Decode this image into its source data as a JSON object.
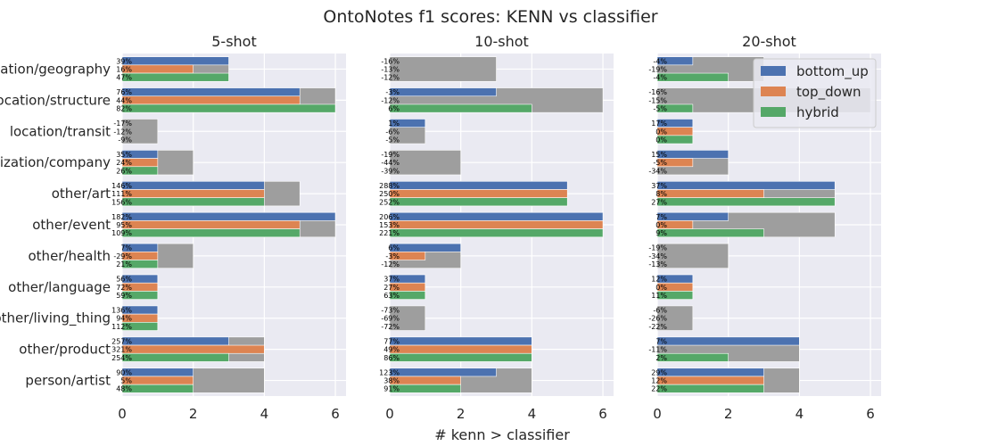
{
  "chart_data": {
    "type": "bar",
    "orientation": "horizontal",
    "title": "OntoNotes f1 scores: KENN vs classifier",
    "xlabel": "# kenn > classifier",
    "xlim": [
      0,
      6.3
    ],
    "xticks": [
      "0",
      "2",
      "4",
      "6"
    ],
    "grid": true,
    "legend_placement": "upper-right of third panel",
    "categories": [
      "/location/geography",
      "/location/structure",
      "location/transit",
      "/organization/company",
      "other/art",
      "other/event",
      "other/health",
      "other/language",
      "/other/living_thing",
      "other/product",
      "person/artist"
    ],
    "colors": {
      "bottom_up": "#4c72b0",
      "top_down": "#dd8452",
      "hybrid": "#55a868",
      "total": "#9e9e9e",
      "panel_bg": "#eaeaf2",
      "grid": "#ffffff"
    },
    "series_names": [
      "bottom_up",
      "top_down",
      "hybrid"
    ],
    "panels": [
      {
        "title": "5-shot",
        "total": [
          3,
          6,
          1,
          2,
          5,
          6,
          2,
          1,
          1,
          4,
          4
        ],
        "series": [
          {
            "name": "bottom_up",
            "values": [
              3,
              5,
              0,
              1,
              4,
              6,
              1,
              1,
              1,
              3,
              2
            ],
            "labels": [
              "39%",
              "76%",
              "-17%",
              "35%",
              "146%",
              "182%",
              "7%",
              "56%",
              "136%",
              "257%",
              "90%"
            ]
          },
          {
            "name": "top_down",
            "values": [
              2,
              5,
              0,
              1,
              4,
              5,
              1,
              1,
              1,
              4,
              2
            ],
            "labels": [
              "16%",
              "44%",
              "-12%",
              "24%",
              "111%",
              "95%",
              "-29%",
              "72%",
              "94%",
              "321%",
              "5%"
            ]
          },
          {
            "name": "hybrid",
            "values": [
              3,
              6,
              0,
              1,
              4,
              5,
              1,
              1,
              1,
              3,
              2
            ],
            "labels": [
              "47%",
              "82%",
              "-9%",
              "26%",
              "156%",
              "109%",
              "21%",
              "59%",
              "112%",
              "254%",
              "48%"
            ]
          }
        ]
      },
      {
        "title": "10-shot",
        "total": [
          3,
          6,
          1,
          2,
          5,
          6,
          2,
          1,
          1,
          4,
          4
        ],
        "series": [
          {
            "name": "bottom_up",
            "values": [
              0,
              3,
              1,
              0,
              5,
              6,
              2,
              1,
              0,
              4,
              3
            ],
            "labels": [
              "-16%",
              "-3%",
              "1%",
              "-19%",
              "288%",
              "206%",
              "6%",
              "37%",
              "-73%",
              "77%",
              "123%"
            ]
          },
          {
            "name": "top_down",
            "values": [
              0,
              0,
              0,
              0,
              5,
              6,
              1,
              1,
              0,
              4,
              2
            ],
            "labels": [
              "-13%",
              "-12%",
              "-6%",
              "-44%",
              "250%",
              "153%",
              "-3%",
              "27%",
              "-69%",
              "49%",
              "38%"
            ]
          },
          {
            "name": "hybrid",
            "values": [
              0,
              4,
              0,
              0,
              5,
              6,
              0,
              1,
              0,
              4,
              2
            ],
            "labels": [
              "-12%",
              "6%",
              "-5%",
              "-39%",
              "252%",
              "221%",
              "-12%",
              "63%",
              "-72%",
              "86%",
              "91%"
            ]
          }
        ]
      },
      {
        "title": "20-shot",
        "total": [
          3,
          6,
          1,
          2,
          5,
          5,
          2,
          1,
          1,
          4,
          4
        ],
        "series": [
          {
            "name": "bottom_up",
            "values": [
              1,
              0,
              1,
              2,
              5,
              2,
              0,
              1,
              0,
              4,
              3
            ],
            "labels": [
              "-4%",
              "-16%",
              "17%",
              "15%",
              "37%",
              "7%",
              "-19%",
              "12%",
              "-6%",
              "7%",
              "29%"
            ]
          },
          {
            "name": "top_down",
            "values": [
              0,
              0,
              1,
              1,
              3,
              1,
              0,
              1,
              0,
              0,
              3
            ],
            "labels": [
              "-19%",
              "-15%",
              "0%",
              "-5%",
              "8%",
              "0%",
              "-34%",
              "0%",
              "-26%",
              "-11%",
              "12%"
            ]
          },
          {
            "name": "hybrid",
            "values": [
              2,
              1,
              1,
              0,
              5,
              3,
              0,
              1,
              0,
              2,
              3
            ],
            "labels": [
              "-4%",
              "-5%",
              "0%",
              "-34%",
              "27%",
              "9%",
              "-13%",
              "11%",
              "-22%",
              "2%",
              "22%"
            ]
          }
        ]
      }
    ]
  }
}
